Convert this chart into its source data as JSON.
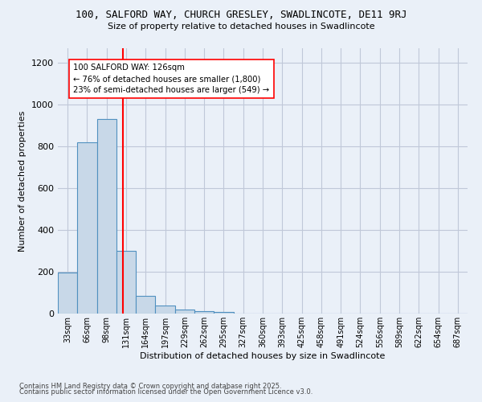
{
  "title1": "100, SALFORD WAY, CHURCH GRESLEY, SWADLINCOTE, DE11 9RJ",
  "title2": "Size of property relative to detached houses in Swadlincote",
  "xlabel": "Distribution of detached houses by size in Swadlincote",
  "ylabel": "Number of detached properties",
  "footnote1": "Contains HM Land Registry data © Crown copyright and database right 2025.",
  "footnote2": "Contains public sector information licensed under the Open Government Licence v3.0.",
  "bin_labels": [
    "33sqm",
    "66sqm",
    "98sqm",
    "131sqm",
    "164sqm",
    "197sqm",
    "229sqm",
    "262sqm",
    "295sqm",
    "327sqm",
    "360sqm",
    "393sqm",
    "425sqm",
    "458sqm",
    "491sqm",
    "524sqm",
    "556sqm",
    "589sqm",
    "622sqm",
    "654sqm",
    "687sqm"
  ],
  "bar_values": [
    197,
    820,
    933,
    300,
    85,
    38,
    18,
    12,
    7,
    0,
    0,
    0,
    0,
    0,
    0,
    0,
    0,
    0,
    0,
    0,
    0
  ],
  "bar_color": "#c8d8e8",
  "bar_edge_color": "#5090c0",
  "red_line_x": 2.85,
  "annotation_text": "100 SALFORD WAY: 126sqm\n← 76% of detached houses are smaller (1,800)\n23% of semi-detached houses are larger (549) →",
  "annotation_box_color": "white",
  "annotation_box_edge_color": "red",
  "red_line_color": "red",
  "ylim": [
    0,
    1270
  ],
  "background_color": "#eaf0f8",
  "plot_bg_color": "#eaf0f8",
  "grid_color": "#c0c8d8",
  "yticks": [
    0,
    200,
    400,
    600,
    800,
    1000,
    1200
  ]
}
